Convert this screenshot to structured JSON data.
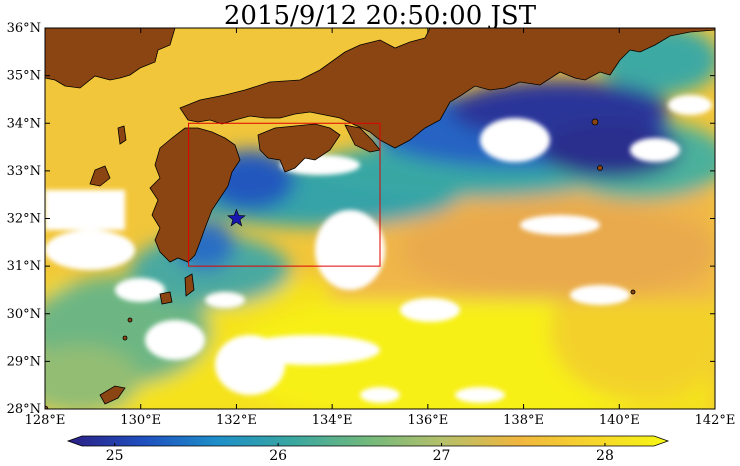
{
  "title": "2015/9/12  20:50:00 JST",
  "map": {
    "lon_range": [
      128,
      142
    ],
    "lat_range": [
      28,
      36
    ],
    "lon_ticks": [
      "128°E",
      "130°E",
      "132°E",
      "134°E",
      "136°E",
      "138°E",
      "140°E",
      "142°E"
    ],
    "lat_ticks": [
      "28°N",
      "29°N",
      "30°N",
      "31°N",
      "32°N",
      "33°N",
      "34°N",
      "35°N",
      "36°N"
    ],
    "region_box": {
      "lon_min": 131,
      "lon_max": 135,
      "lat_min": 31,
      "lat_max": 34
    },
    "marker": {
      "lon": 132,
      "lat": 32,
      "symbol": "star"
    },
    "land_color": "#8b4513",
    "missing_color": "#ffffff"
  },
  "colorbar": {
    "min": 24.8,
    "max": 28.3,
    "ticks": [
      "25",
      "26",
      "27",
      "28"
    ],
    "tick_values": [
      25,
      26,
      27,
      28
    ],
    "colors": [
      "#2c1f84",
      "#1f4fbf",
      "#1e8fc8",
      "#3aa7a0",
      "#72b97c",
      "#b5c06a",
      "#f0b63f",
      "#f7d52c",
      "#f6f713"
    ]
  }
}
